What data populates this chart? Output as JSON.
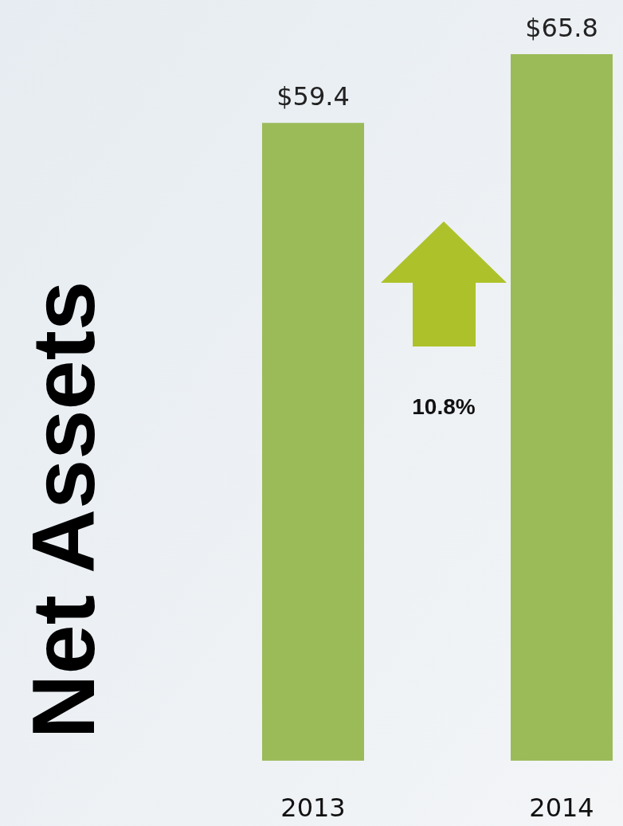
{
  "chart_data": {
    "type": "bar",
    "title": "Net Assets",
    "categories": [
      "2013",
      "2014"
    ],
    "values": [
      59.4,
      65.8
    ],
    "color": "#9bbb59",
    "value_labels": [
      "$59.4",
      "$65.8"
    ],
    "annotations": [
      "10.8%"
    ]
  }
}
